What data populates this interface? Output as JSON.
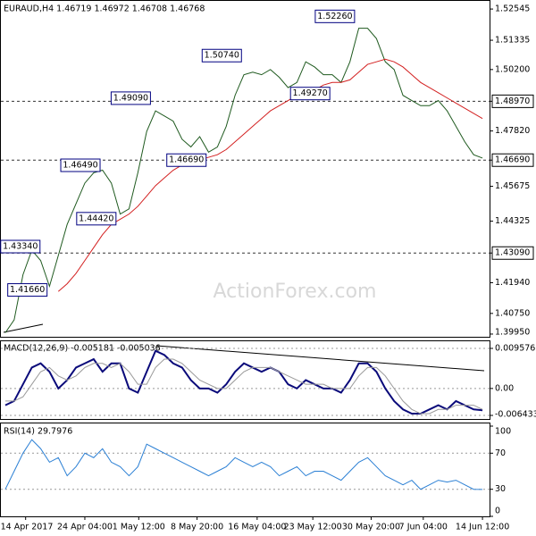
{
  "chart_data": [
    {
      "type": "line",
      "title": "EURAUD,H4 1.46719 1.46972 1.46708 1.46768",
      "watermark": "ActionForex.com",
      "x": [
        0,
        1,
        2,
        3,
        4,
        5,
        6,
        7,
        8,
        9,
        10,
        11,
        12,
        13,
        14,
        15,
        16,
        17,
        18,
        19,
        20,
        21,
        22,
        23,
        24,
        25,
        26,
        27,
        28,
        29,
        30,
        31,
        32,
        33,
        34,
        35,
        36,
        37,
        38,
        39,
        40,
        41,
        42,
        43,
        44,
        45,
        46,
        47,
        48,
        49,
        50,
        51,
        52,
        53,
        54
      ],
      "xlim": [
        -0.5,
        54.8
      ],
      "series": [
        {
          "color": "#1f5a1f",
          "values": [
            1.4,
            1.405,
            1.4225,
            1.432,
            1.428,
            1.418,
            1.43,
            1.442,
            1.45,
            1.458,
            1.462,
            1.463,
            1.458,
            1.446,
            1.448,
            1.462,
            1.478,
            1.486,
            1.484,
            1.482,
            1.475,
            1.472,
            1.476,
            1.47,
            1.472,
            1.48,
            1.492,
            1.5,
            1.501,
            1.5,
            1.502,
            1.499,
            1.495,
            1.497,
            1.505,
            1.503,
            1.5,
            1.5,
            1.497,
            1.505,
            1.518,
            1.518,
            1.514,
            1.505,
            1.502,
            1.492,
            1.49,
            1.488,
            1.488,
            1.49,
            1.486,
            1.48,
            1.474,
            1.469,
            1.4677
          ]
        },
        {
          "color": "#d32020",
          "values": [
            null,
            null,
            null,
            null,
            null,
            null,
            1.416,
            1.419,
            1.423,
            1.428,
            1.433,
            1.438,
            1.442,
            1.444,
            1.446,
            1.449,
            1.453,
            1.457,
            1.46,
            1.463,
            1.465,
            1.466,
            1.467,
            1.468,
            1.469,
            1.471,
            1.474,
            1.477,
            1.48,
            1.483,
            1.486,
            1.488,
            1.49,
            1.492,
            1.493,
            1.494,
            1.496,
            1.497,
            1.497,
            1.498,
            1.501,
            1.504,
            1.505,
            1.506,
            1.505,
            1.503,
            1.5,
            1.497,
            1.495,
            1.493,
            1.491,
            1.489,
            1.487,
            1.485,
            1.483
          ]
        }
      ],
      "ylim": [
        1.3981,
        1.5286
      ],
      "yticks": [
        1.52545,
        1.51335,
        {
          "value": 1.502,
          "label": "1.50200"
        },
        {
          "value": 1.4897,
          "label": "1.48970"
        },
        {
          "value": 1.4782,
          "label": "1.47820"
        },
        {
          "value": 1.4669,
          "label": "1.46690"
        },
        1.45675,
        1.44325,
        {
          "value": 1.4309,
          "label": "1.43090"
        },
        {
          "value": 1.4194,
          "label": "1.41940"
        },
        {
          "value": 1.4075,
          "label": "1.40750"
        },
        {
          "value": 1.3995,
          "label": "1.39950"
        }
      ],
      "levels": [
        1.4897,
        1.4669,
        1.4309
      ],
      "annotations": [
        {
          "label": "1.52260",
          "value": 1.5226,
          "x": 37.3
        },
        {
          "label": "1.50740",
          "value": 1.5074,
          "x": 24.5
        },
        {
          "label": "1.49090",
          "value": 1.4909,
          "x": 14.2
        },
        {
          "label": "1.49270",
          "value": 1.4927,
          "x": 34.5
        },
        {
          "label": "1.46490",
          "value": 1.4649,
          "x": 8.5
        },
        {
          "label": "1.46690",
          "value": 1.4669,
          "x": 20.5
        },
        {
          "label": "1.44420",
          "value": 1.4442,
          "x": 10.3
        },
        {
          "label": "1.43340",
          "value": 1.4334,
          "x": 1.7
        },
        {
          "label": "1.41660",
          "value": 1.4166,
          "x": 2.5
        }
      ]
    },
    {
      "type": "line",
      "title": "MACD(12,26,9) -0.005181 -0.005036",
      "x": [
        0,
        1,
        2,
        3,
        4,
        5,
        6,
        7,
        8,
        9,
        10,
        11,
        12,
        13,
        14,
        15,
        16,
        17,
        18,
        19,
        20,
        21,
        22,
        23,
        24,
        25,
        26,
        27,
        28,
        29,
        30,
        31,
        32,
        33,
        34,
        35,
        36,
        37,
        38,
        39,
        40,
        41,
        42,
        43,
        44,
        45,
        46,
        47,
        48,
        49,
        50,
        51,
        52,
        53,
        54
      ],
      "xlim": [
        -0.5,
        54.8
      ],
      "series": [
        {
          "color": "#0a0a7a",
          "values": [
            -0.004,
            -0.003,
            0.001,
            0.005,
            0.006,
            0.004,
            0.0,
            0.002,
            0.005,
            0.006,
            0.007,
            0.004,
            0.006,
            0.006,
            0.0,
            -0.001,
            0.004,
            0.009,
            0.008,
            0.006,
            0.005,
            0.002,
            0.0,
            0.0,
            -0.001,
            0.001,
            0.004,
            0.006,
            0.005,
            0.004,
            0.005,
            0.004,
            0.001,
            0.0,
            0.002,
            0.001,
            0.0,
            0.0,
            -0.001,
            0.002,
            0.006,
            0.006,
            0.004,
            0.0,
            -0.003,
            -0.005,
            -0.006,
            -0.006,
            -0.005,
            -0.004,
            -0.005,
            -0.003,
            -0.004,
            -0.005,
            -0.0052
          ]
        },
        {
          "color": "#999999",
          "values": [
            -0.003,
            -0.003,
            -0.002,
            0.001,
            0.004,
            0.005,
            0.003,
            0.002,
            0.003,
            0.005,
            0.006,
            0.006,
            0.005,
            0.006,
            0.004,
            0.001,
            0.001,
            0.005,
            0.007,
            0.007,
            0.006,
            0.004,
            0.002,
            0.001,
            0.0,
            0.0,
            0.002,
            0.004,
            0.005,
            0.005,
            0.005,
            0.004,
            0.003,
            0.002,
            0.001,
            0.001,
            0.001,
            0.0,
            0.0,
            0.0,
            0.003,
            0.005,
            0.005,
            0.003,
            0.0,
            -0.003,
            -0.005,
            -0.006,
            -0.006,
            -0.005,
            -0.005,
            -0.004,
            -0.004,
            -0.004,
            -0.005
          ]
        }
      ],
      "ylim": [
        -0.0075,
        0.01128
      ],
      "yticks": [
        0.009576,
        {
          "value": 0,
          "label": "0.00"
        },
        -0.006433
      ]
    },
    {
      "type": "line",
      "title": "RSI(14) 29.7976",
      "x": [
        0,
        1,
        2,
        3,
        4,
        5,
        6,
        7,
        8,
        9,
        10,
        11,
        12,
        13,
        14,
        15,
        16,
        17,
        18,
        19,
        20,
        21,
        22,
        23,
        24,
        25,
        26,
        27,
        28,
        29,
        30,
        31,
        32,
        33,
        34,
        35,
        36,
        37,
        38,
        39,
        40,
        41,
        42,
        43,
        44,
        45,
        46,
        47,
        48,
        49,
        50,
        51,
        52,
        53,
        54
      ],
      "xlim": [
        -0.5,
        54.8
      ],
      "series": [
        {
          "color": "#2a7fd4",
          "values": [
            30,
            50,
            70,
            85,
            75,
            60,
            65,
            45,
            55,
            70,
            65,
            75,
            60,
            55,
            45,
            55,
            80,
            75,
            70,
            65,
            60,
            55,
            50,
            45,
            50,
            55,
            65,
            60,
            55,
            60,
            55,
            45,
            50,
            55,
            45,
            50,
            50,
            45,
            40,
            50,
            60,
            65,
            55,
            45,
            40,
            35,
            40,
            30,
            35,
            40,
            38,
            40,
            35,
            30,
            29.8
          ]
        }
      ],
      "ylim": [
        0,
        100
      ],
      "yticks": [
        100,
        70,
        30,
        0
      ],
      "xticks": [
        {
          "value": 2.3,
          "label": "14 Apr 2017"
        },
        {
          "value": 9,
          "label": "24 Apr 04:00"
        },
        {
          "value": 15.1,
          "label": "1 May 12:00"
        },
        {
          "value": 21.7,
          "label": "8 May 20:00"
        },
        {
          "value": 28.5,
          "label": "16 May 04:00"
        },
        {
          "value": 34.8,
          "label": "23 May 12:00"
        },
        {
          "value": 41.4,
          "label": "30 May 20:00"
        },
        {
          "value": 47.3,
          "label": "7 Jun 04:00"
        },
        {
          "value": 54,
          "label": "14 Jun 12:00"
        }
      ]
    }
  ]
}
